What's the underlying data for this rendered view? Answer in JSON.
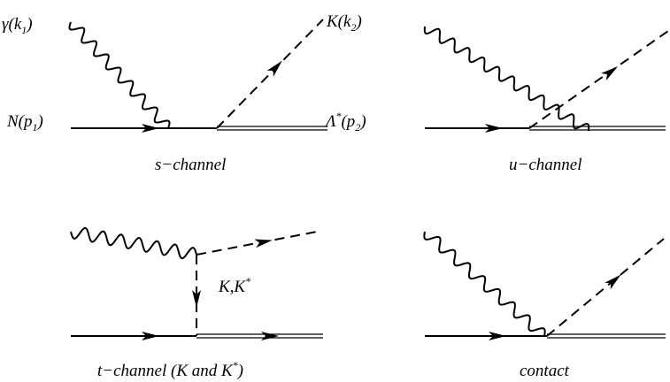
{
  "diagrams": {
    "s_channel": {
      "caption": "s−channel",
      "photon": {
        "main": "γ(k",
        "sub": "1",
        "close": ")"
      },
      "kaon": {
        "main": "K(k",
        "sub": "2",
        "close": ")"
      },
      "nucleon": {
        "main": "N(p",
        "sub": "1",
        "close": ")"
      },
      "lambda": {
        "main": "Λ",
        "sup": "*",
        "mid": "(p",
        "sub": "2",
        "close": ")"
      }
    },
    "u_channel": {
      "caption": "u−channel"
    },
    "t_channel": {
      "caption_main": "t−channel (K and K",
      "caption_sup": "*",
      "caption_close": ")",
      "exchange": {
        "main": "K,K",
        "sup": "*"
      }
    },
    "contact": {
      "caption": "contact"
    }
  }
}
